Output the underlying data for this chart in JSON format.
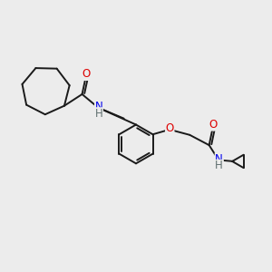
{
  "background_color": "#ececec",
  "bond_color": "#1a1a1a",
  "atom_colors": {
    "O": "#dd0000",
    "N": "#0000ee",
    "H": "#607070",
    "C": "#1a1a1a"
  },
  "figsize": [
    3.0,
    3.0
  ],
  "dpi": 100,
  "lw": 1.4,
  "fontsize": 8.5
}
